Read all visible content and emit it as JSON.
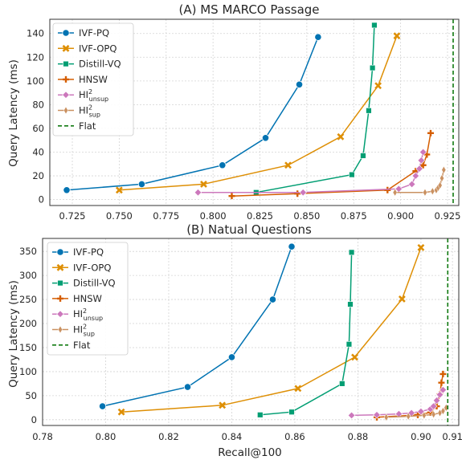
{
  "chart_data": [
    {
      "type": "line",
      "title": "(A) MS MARCO Passage",
      "xlabel": "",
      "ylabel": "Query Latency (ms)",
      "xlim": [
        0.713,
        0.931
      ],
      "ylim": [
        -5,
        152
      ],
      "xticks": [
        0.725,
        0.75,
        0.775,
        0.8,
        0.825,
        0.85,
        0.875,
        0.9,
        0.925
      ],
      "xtick_labels": [
        "0.725",
        "0.750",
        "0.775",
        "0.800",
        "0.825",
        "0.850",
        "0.875",
        "0.900",
        "0.925"
      ],
      "yticks": [
        0,
        20,
        40,
        60,
        80,
        100,
        120,
        140
      ],
      "ytick_labels": [
        "0",
        "20",
        "40",
        "60",
        "80",
        "100",
        "120",
        "140"
      ],
      "grid": true,
      "legend_position": "upper-left",
      "series": [
        {
          "name": "IVF-PQ",
          "label_main": "IVF-PQ",
          "label_sub": "",
          "color": "#0173b2",
          "marker": "circle",
          "x": [
            0.722,
            0.762,
            0.805,
            0.828,
            0.846,
            0.856
          ],
          "y": [
            8,
            13,
            29,
            52,
            97,
            137
          ]
        },
        {
          "name": "IVF-OPQ",
          "label_main": "IVF-OPQ",
          "label_sub": "",
          "color": "#de8f05",
          "marker": "x",
          "x": [
            0.75,
            0.795,
            0.84,
            0.868,
            0.888,
            0.898
          ],
          "y": [
            8,
            13,
            29,
            53,
            96,
            138
          ]
        },
        {
          "name": "Distill-VQ",
          "label_main": "Distill-VQ",
          "label_sub": "",
          "color": "#029e73",
          "marker": "square",
          "x": [
            0.823,
            0.874,
            0.88,
            0.883,
            0.885,
            0.886
          ],
          "y": [
            6,
            21,
            37,
            75,
            111,
            147
          ]
        },
        {
          "name": "HNSW",
          "label_main": "HNSW",
          "label_sub": "",
          "color": "#d55e00",
          "marker": "plus",
          "x": [
            0.81,
            0.845,
            0.893,
            0.908,
            0.912,
            0.914,
            0.916
          ],
          "y": [
            3,
            5,
            8,
            24,
            29,
            38,
            56
          ]
        },
        {
          "name": "HI2unsup",
          "label_main": "HI",
          "label_sup": "2",
          "label_sub": "unsup",
          "color": "#cc78bc",
          "marker": "diamond",
          "x": [
            0.792,
            0.848,
            0.899,
            0.906,
            0.908,
            0.91,
            0.911,
            0.912
          ],
          "y": [
            6,
            6,
            9,
            13,
            20,
            26,
            33,
            40
          ]
        },
        {
          "name": "HI2sup",
          "label_main": "HI",
          "label_sup": "2",
          "label_sub": "sup",
          "color": "#ca9161",
          "marker": "thin-diamond",
          "x": [
            0.897,
            0.913,
            0.917,
            0.919,
            0.92,
            0.921,
            0.922,
            0.923
          ],
          "y": [
            6,
            6,
            7,
            8,
            10,
            12,
            18,
            25
          ]
        },
        {
          "name": "Flat",
          "label_main": "Flat",
          "label_sub": "",
          "color": "#117a11",
          "marker": "vline",
          "x_vline": 0.928
        }
      ]
    },
    {
      "type": "line",
      "title": "(B) Natual Questions",
      "xlabel": "Recall@100",
      "ylabel": "Query Latency (ms)",
      "xlim": [
        0.78,
        0.912
      ],
      "ylim": [
        -12,
        377
      ],
      "xticks": [
        0.78,
        0.8,
        0.82,
        0.84,
        0.86,
        0.88,
        0.9,
        0.91
      ],
      "xtick_labels": [
        "0.78",
        "0.80",
        "0.82",
        "0.84",
        "0.86",
        "0.88",
        "0.90",
        "0.91"
      ],
      "yticks": [
        0,
        50,
        100,
        150,
        200,
        250,
        300,
        350
      ],
      "ytick_labels": [
        "0",
        "50",
        "100",
        "150",
        "200",
        "250",
        "300",
        "350"
      ],
      "grid": true,
      "legend_position": "upper-left",
      "series": [
        {
          "name": "IVF-PQ",
          "label_main": "IVF-PQ",
          "label_sub": "",
          "color": "#0173b2",
          "marker": "circle",
          "x": [
            0.799,
            0.826,
            0.84,
            0.853,
            0.859
          ],
          "y": [
            28,
            68,
            130,
            250,
            360
          ]
        },
        {
          "name": "IVF-OPQ",
          "label_main": "IVF-OPQ",
          "label_sub": "",
          "color": "#de8f05",
          "marker": "x",
          "x": [
            0.805,
            0.837,
            0.861,
            0.879,
            0.894,
            0.9
          ],
          "y": [
            16,
            30,
            65,
            130,
            251,
            358
          ]
        },
        {
          "name": "Distill-VQ",
          "label_main": "Distill-VQ",
          "label_sub": "",
          "color": "#029e73",
          "marker": "square",
          "x": [
            0.849,
            0.859,
            0.875,
            0.8772,
            0.8776,
            0.878
          ],
          "y": [
            10,
            16,
            75,
            157,
            240,
            348
          ]
        },
        {
          "name": "HNSW",
          "label_main": "HNSW",
          "label_sub": "",
          "color": "#d55e00",
          "marker": "plus",
          "x": [
            0.886,
            0.899,
            0.903,
            0.905,
            0.906,
            0.9065,
            0.907
          ],
          "y": [
            5,
            10,
            15,
            28,
            53,
            77,
            95
          ]
        },
        {
          "name": "HI2unsup",
          "label_main": "HI",
          "label_sup": "2",
          "label_sub": "unsup",
          "color": "#cc78bc",
          "marker": "diamond",
          "x": [
            0.878,
            0.886,
            0.893,
            0.897,
            0.9,
            0.903,
            0.904,
            0.905,
            0.906,
            0.907
          ],
          "y": [
            9,
            10,
            12,
            14,
            17,
            22,
            28,
            40,
            52,
            62
          ]
        },
        {
          "name": "HI2sup",
          "label_main": "HI",
          "label_sup": "2",
          "label_sub": "sup",
          "color": "#ca9161",
          "marker": "thin-diamond",
          "x": [
            0.889,
            0.896,
            0.901,
            0.904,
            0.906,
            0.907,
            0.908
          ],
          "y": [
            5,
            7,
            9,
            11,
            14,
            18,
            25
          ]
        },
        {
          "name": "Flat",
          "label_main": "Flat",
          "label_sub": "",
          "color": "#117a11",
          "marker": "vline",
          "x_vline": 0.9085
        }
      ]
    }
  ]
}
